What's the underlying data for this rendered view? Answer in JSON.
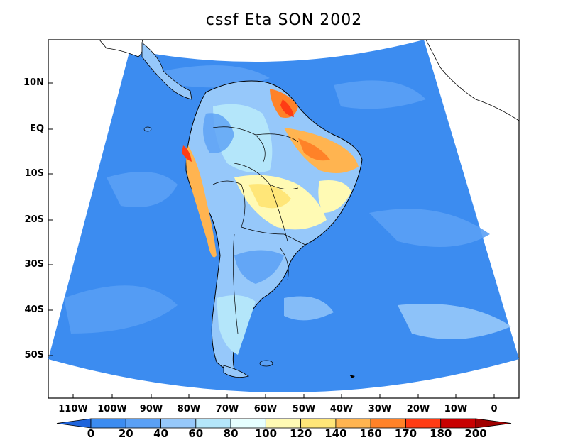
{
  "title": "cssf Eta SON 2002",
  "lat_ticks": [
    "10N",
    "EQ",
    "10S",
    "20S",
    "30S",
    "40S",
    "50S"
  ],
  "lon_ticks": [
    "110W",
    "100W",
    "90W",
    "80W",
    "70W",
    "60W",
    "50W",
    "40W",
    "30W",
    "20W",
    "10W",
    "0"
  ],
  "colorbar": {
    "labels": [
      "0",
      "20",
      "40",
      "60",
      "80",
      "100",
      "120",
      "140",
      "160",
      "170",
      "180",
      "200"
    ],
    "colors": [
      "#1e64dc",
      "#3c8cf0",
      "#5aa0f5",
      "#96c8fa",
      "#b4e6fa",
      "#e6ffff",
      "#fffab4",
      "#ffe678",
      "#ffb450",
      "#ff8228",
      "#ff3c14",
      "#c80000",
      "#a00000"
    ]
  },
  "ocean_color": "#3c8cf0",
  "land_base_color": "#96c8fa"
}
